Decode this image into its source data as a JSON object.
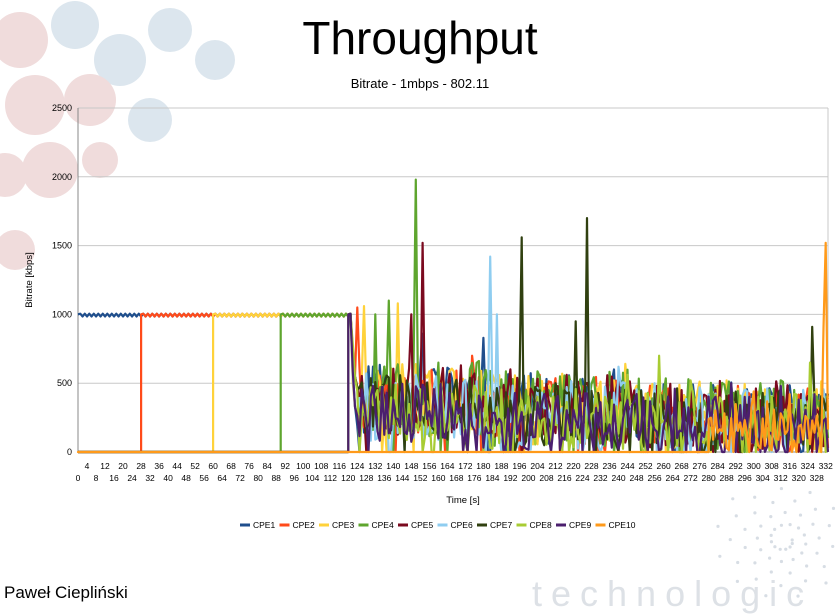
{
  "slide": {
    "title": "Throughput",
    "subtitle": "Bitrate - 1mbps - 802.11",
    "author": "Paweł Ciepliński",
    "logo_text": "technologic"
  },
  "colors": {
    "CPE1": "#1f4e8c",
    "CPE2": "#ff4a1a",
    "CPE3": "#ffd23a",
    "CPE4": "#5ea52e",
    "CPE5": "#7b0a1f",
    "CPE6": "#8fcdf0",
    "CPE7": "#304010",
    "CPE8": "#a8cc33",
    "CPE9": "#4b1f6e",
    "CPE10": "#ff9a1a",
    "grid": "#c8c8c8",
    "axis": "#888888",
    "deco_blue": "#dce6ee",
    "deco_red": "#f0dcdc"
  },
  "chart_data": {
    "type": "line",
    "title": "",
    "xlabel": "Time [s]",
    "ylabel": "Bitrate [kbps]",
    "xlim": [
      0,
      333
    ],
    "ylim": [
      0,
      2500
    ],
    "yticks": [
      0,
      500,
      1000,
      1500,
      2000,
      2500
    ],
    "xticks_even": [
      "0",
      "8",
      "16",
      "24",
      "32",
      "40",
      "48",
      "56",
      "64",
      "72",
      "80",
      "88",
      "96",
      "104",
      "112",
      "120",
      "128",
      "136",
      "144",
      "152",
      "160",
      "168",
      "176",
      "184",
      "192",
      "200",
      "208",
      "216",
      "224",
      "232",
      "240",
      "248",
      "256",
      "264",
      "272",
      "280",
      "288",
      "296",
      "304",
      "312",
      "320",
      "328"
    ],
    "xticks_odd": [
      "4",
      "12",
      "20",
      "28",
      "36",
      "44",
      "52",
      "60",
      "68",
      "76",
      "84",
      "92",
      "100",
      "108",
      "116",
      "124",
      "132",
      "140",
      "148",
      "156",
      "164",
      "172",
      "180",
      "188",
      "196",
      "204",
      "212",
      "220",
      "228",
      "236",
      "244",
      "252",
      "260",
      "268",
      "276",
      "284",
      "292",
      "300",
      "308",
      "316",
      "324",
      "332"
    ],
    "grid": true,
    "legend": "bottom",
    "series": [
      {
        "name": "CPE1",
        "start": 0,
        "avg": 330,
        "spread": 260,
        "peaks": [
          [
            153,
            860
          ],
          [
            180,
            830
          ],
          [
            238,
            600
          ],
          [
            250,
            450
          ]
        ]
      },
      {
        "name": "CPE2",
        "start": 28,
        "avg": 320,
        "spread": 250,
        "peaks": [
          [
            124,
            1050
          ],
          [
            175,
            700
          ],
          [
            205,
            560
          ],
          [
            300,
            420
          ]
        ]
      },
      {
        "name": "CPE3",
        "start": 60,
        "avg": 330,
        "spread": 260,
        "peaks": [
          [
            121,
            1100
          ],
          [
            127,
            1060
          ],
          [
            142,
            1080
          ],
          [
            243,
            640
          ]
        ]
      },
      {
        "name": "CPE4",
        "start": 90,
        "avg": 340,
        "spread": 280,
        "peaks": [
          [
            150,
            1980
          ],
          [
            138,
            1100
          ],
          [
            132,
            1000
          ],
          [
            160,
            650
          ]
        ]
      },
      {
        "name": "CPE5",
        "start": 120,
        "avg": 320,
        "spread": 260,
        "peaks": [
          [
            153,
            1520
          ],
          [
            148,
            1000
          ],
          [
            170,
            630
          ],
          [
            192,
            600
          ]
        ]
      },
      {
        "name": "CPE6",
        "start": 120,
        "avg": 280,
        "spread": 250,
        "peaks": [
          [
            183,
            1420
          ],
          [
            186,
            1000
          ],
          [
            240,
            620
          ],
          [
            256,
            500
          ]
        ]
      },
      {
        "name": "CPE7",
        "start": 120,
        "avg": 280,
        "spread": 240,
        "peaks": [
          [
            197,
            1560
          ],
          [
            226,
            1700
          ],
          [
            221,
            950
          ],
          [
            326,
            910
          ]
        ]
      },
      {
        "name": "CPE8",
        "start": 120,
        "avg": 260,
        "spread": 230,
        "peaks": [
          [
            258,
            700
          ],
          [
            244,
            560
          ],
          [
            272,
            520
          ],
          [
            325,
            650
          ]
        ]
      },
      {
        "name": "CPE9",
        "start": 120,
        "avg": 240,
        "spread": 220,
        "peaks": [
          [
            290,
            500
          ],
          [
            312,
            480
          ],
          [
            265,
            460
          ],
          [
            327,
            420
          ]
        ]
      },
      {
        "name": "CPE10",
        "start": 280,
        "avg": 220,
        "spread": 200,
        "peaks": [
          [
            332,
            1520
          ],
          [
            331,
            900
          ],
          [
            300,
            440
          ],
          [
            316,
            420
          ]
        ]
      }
    ]
  }
}
